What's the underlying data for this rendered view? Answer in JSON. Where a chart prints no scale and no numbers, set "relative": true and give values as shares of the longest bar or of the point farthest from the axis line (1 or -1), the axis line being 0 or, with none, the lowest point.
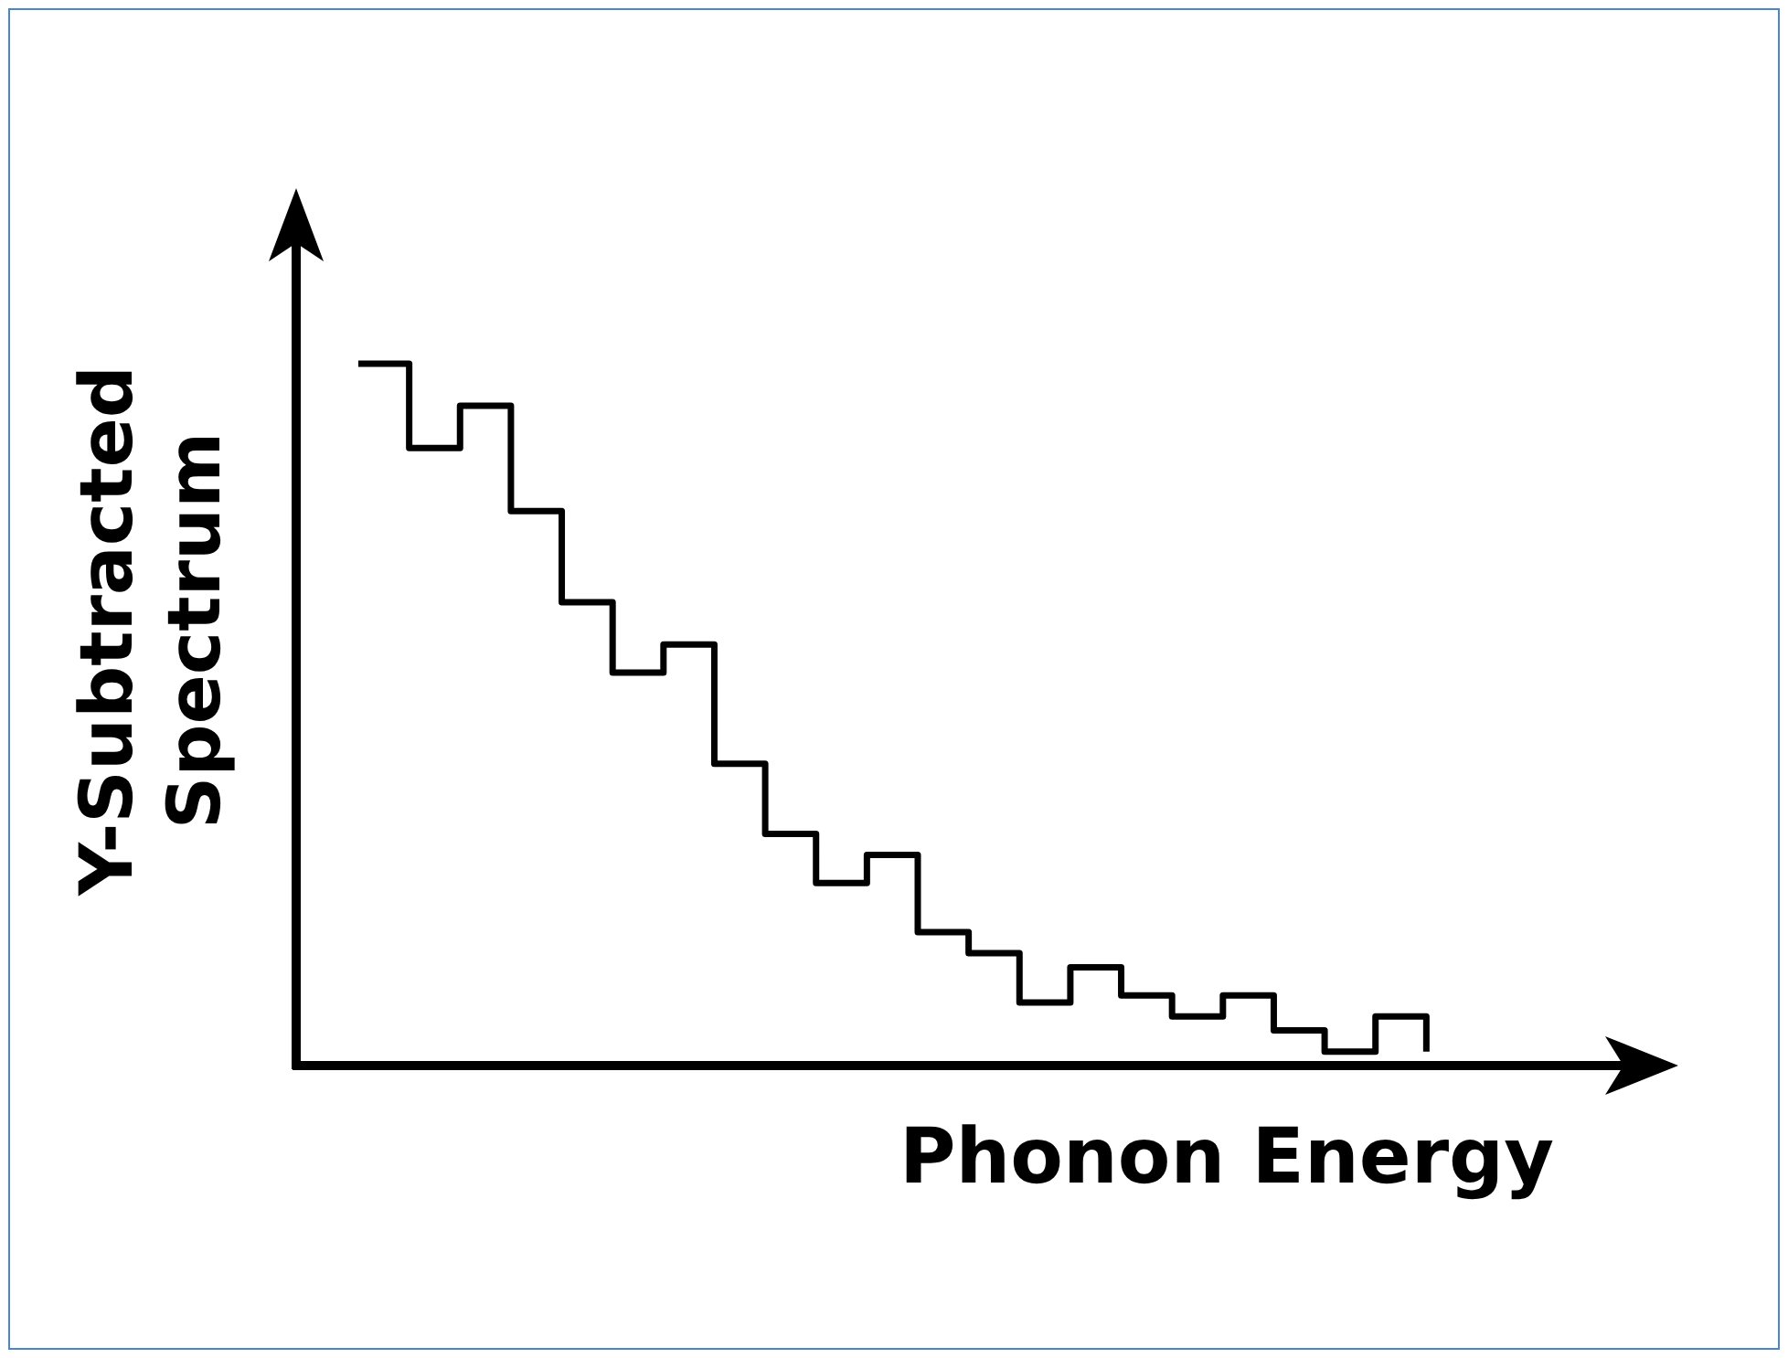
{
  "chart_data": {
    "type": "step",
    "relative": true,
    "xlabel": "Phonon Energy",
    "ylabel": "Y-Subtracted Spectrum",
    "categories": [
      null,
      null,
      null,
      null,
      null,
      null,
      null,
      null,
      null,
      null,
      null,
      null,
      null,
      null,
      null,
      null,
      null,
      null,
      null,
      null,
      null,
      null
    ],
    "series": [
      {
        "color": "#000000",
        "values": [
          1,
          0.88,
          0.94,
          0.79,
          0.66,
          0.56,
          0.6,
          0.43,
          0.33,
          0.26,
          0.3,
          0.19,
          0.16,
          0.09,
          0.14,
          0.1,
          0.07,
          0.1,
          0.05,
          0.02,
          0.07,
          0.02
        ]
      }
    ],
    "line_style": "solid",
    "tick_labels": false
  }
}
